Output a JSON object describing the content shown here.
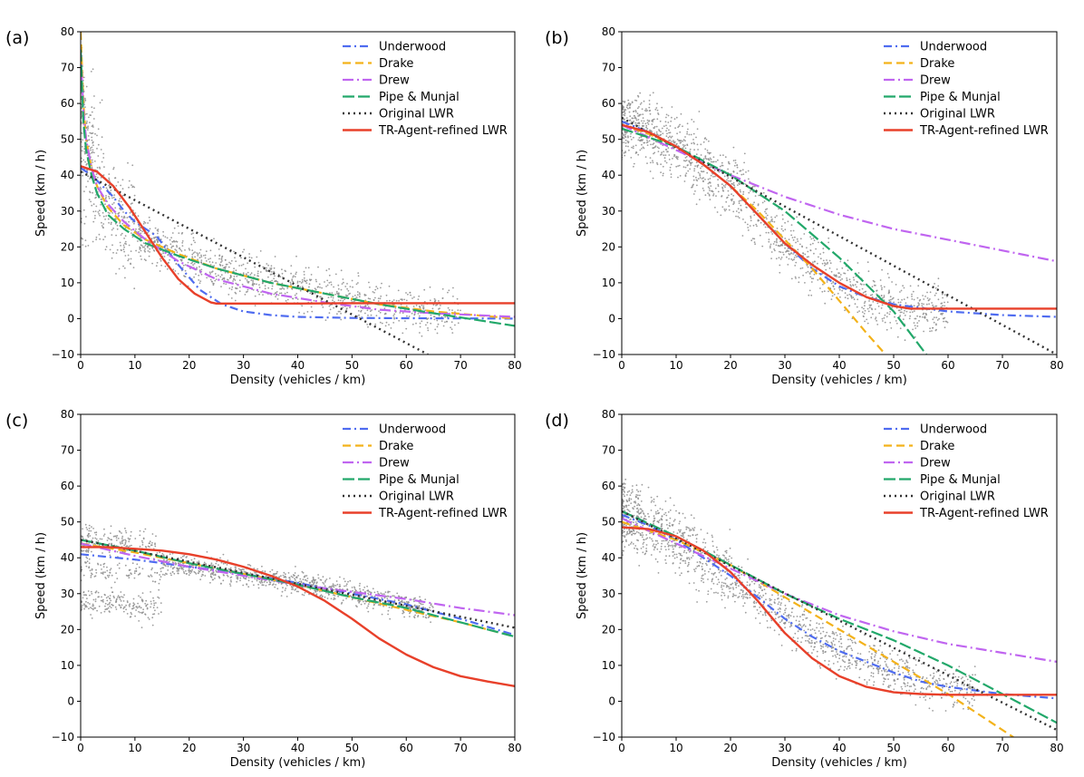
{
  "legend_labels": [
    "Underwood",
    "Drake",
    "Drew",
    "Pipe & Munjal",
    "Original LWR",
    "TR-Agent-refined LWR"
  ],
  "colors": {
    "underwood": "#4f6cf0",
    "drake": "#f3b21a",
    "drew": "#c065f0",
    "pipe": "#22a86a",
    "original": "#333333",
    "refined": "#e8402a",
    "scatter": "#8c8c8c"
  },
  "chart_data": [
    {
      "type": "line",
      "panel_label": "(a)",
      "xlabel": "Density (vehicles / km)",
      "ylabel": "Speed (km / h)",
      "xlim": [
        0,
        80
      ],
      "ylim": [
        -10,
        80
      ],
      "xticks": [
        "0",
        "10",
        "20",
        "30",
        "40",
        "50",
        "60",
        "70",
        "80"
      ],
      "yticks": [
        "80",
        "70",
        "60",
        "50",
        "40",
        "30",
        "20",
        "10",
        "0",
        "−10"
      ],
      "legend_position": "top-right",
      "series": [
        {
          "name": "Underwood",
          "x": [
            0,
            2,
            4,
            6,
            8,
            10,
            14,
            18,
            22,
            26,
            30,
            35,
            40,
            50,
            60,
            80
          ],
          "values": [
            42,
            40,
            37,
            34,
            30,
            27,
            23,
            15,
            8,
            4,
            2,
            1,
            0.5,
            0.2,
            0.1,
            0
          ]
        },
        {
          "name": "Drake",
          "x": [
            0,
            0.5,
            1,
            2,
            3,
            5,
            8,
            12,
            18,
            25,
            35,
            45,
            55,
            65,
            80
          ],
          "values": [
            80,
            60,
            50,
            42,
            37,
            31,
            26,
            22,
            18,
            14,
            10,
            7,
            4,
            2,
            0
          ]
        },
        {
          "name": "Drew",
          "x": [
            0,
            0.5,
            1,
            2,
            3,
            5,
            8,
            12,
            18,
            25,
            35,
            45,
            55,
            65,
            80
          ],
          "values": [
            75,
            58,
            50,
            42,
            37,
            32,
            27,
            22,
            16,
            11,
            7,
            4.5,
            2.5,
            1.5,
            0.5
          ]
        },
        {
          "name": "Pipe & Munjal",
          "x": [
            0,
            0.5,
            1,
            2,
            3,
            5,
            8,
            12,
            18,
            25,
            35,
            45,
            55,
            65,
            80
          ],
          "values": [
            75,
            55,
            47,
            40,
            35,
            29,
            25,
            21,
            17.5,
            14,
            10,
            7,
            4,
            1.5,
            -2
          ]
        },
        {
          "name": "Original LWR",
          "x": [
            0,
            64
          ],
          "values": [
            41,
            -10
          ]
        },
        {
          "name": "TR-Agent-refined LWR",
          "x": [
            0,
            3,
            6,
            9,
            12,
            15,
            18,
            21,
            24,
            25,
            30,
            40,
            50,
            60,
            70,
            80
          ],
          "values": [
            42.5,
            41,
            37,
            31,
            24,
            17,
            11,
            7,
            4.5,
            4.2,
            4.2,
            4.2,
            4.3,
            4.3,
            4.3,
            4.3
          ]
        }
      ]
    },
    {
      "type": "line",
      "panel_label": "(b)",
      "xlabel": "Density (vehicles / km)",
      "ylabel": "Speed (km / h)",
      "xlim": [
        0,
        80
      ],
      "ylim": [
        -10,
        80
      ],
      "xticks": [
        "0",
        "10",
        "20",
        "30",
        "40",
        "50",
        "60",
        "70",
        "80"
      ],
      "yticks": [
        "80",
        "70",
        "60",
        "50",
        "40",
        "30",
        "20",
        "10",
        "0",
        "−10"
      ],
      "legend_position": "top-right",
      "series": [
        {
          "name": "Underwood",
          "x": [
            0,
            5,
            10,
            15,
            20,
            25,
            30,
            35,
            40,
            45,
            50,
            55,
            60,
            70,
            80
          ],
          "values": [
            55,
            52,
            48,
            43,
            37,
            29,
            21,
            14,
            9,
            6,
            4,
            3,
            2,
            1,
            0.5
          ]
        },
        {
          "name": "Drake",
          "x": [
            0,
            5,
            10,
            15,
            20,
            25,
            30,
            35,
            40,
            45,
            48.5
          ],
          "values": [
            54,
            51.5,
            48,
            43,
            37,
            30,
            22,
            14,
            5,
            -4,
            -10
          ]
        },
        {
          "name": "Drew",
          "x": [
            0,
            10,
            20,
            30,
            40,
            50,
            60,
            70,
            80
          ],
          "values": [
            54,
            47,
            40,
            34,
            29,
            25,
            22,
            19,
            16
          ]
        },
        {
          "name": "Pipe & Munjal",
          "x": [
            0,
            10,
            20,
            30,
            40,
            50,
            56
          ],
          "values": [
            53,
            48,
            40,
            30,
            17,
            2,
            -10
          ]
        },
        {
          "name": "Original LWR",
          "x": [
            0,
            80
          ],
          "values": [
            56,
            -10
          ]
        },
        {
          "name": "TR-Agent-refined LWR",
          "x": [
            0,
            5,
            10,
            15,
            20,
            25,
            30,
            35,
            40,
            45,
            50,
            53,
            60,
            70,
            80
          ],
          "values": [
            54,
            52,
            48,
            43,
            37,
            29,
            21,
            15,
            10,
            6,
            3.5,
            2.8,
            2.8,
            2.8,
            2.8
          ]
        }
      ]
    },
    {
      "type": "line",
      "panel_label": "(c)",
      "xlabel": "Density (vehicles / km)",
      "ylabel": "Speed (km / h)",
      "xlim": [
        0,
        80
      ],
      "ylim": [
        -10,
        80
      ],
      "xticks": [
        "0",
        "10",
        "20",
        "30",
        "40",
        "50",
        "60",
        "70",
        "80"
      ],
      "yticks": [
        "80",
        "70",
        "60",
        "50",
        "40",
        "30",
        "20",
        "10",
        "0",
        "−10"
      ],
      "legend_position": "top-right",
      "series": [
        {
          "name": "Underwood",
          "x": [
            0,
            10,
            20,
            30,
            40,
            50,
            60,
            70,
            80
          ],
          "values": [
            41,
            39.5,
            37.5,
            35.5,
            33,
            30,
            27,
            23,
            18.5
          ]
        },
        {
          "name": "Drake",
          "x": [
            0,
            10,
            20,
            30,
            40,
            50,
            60,
            70,
            80
          ],
          "values": [
            44,
            41.5,
            38.5,
            35.5,
            32.5,
            29,
            25.5,
            22,
            18
          ]
        },
        {
          "name": "Drew",
          "x": [
            0,
            10,
            20,
            30,
            40,
            50,
            60,
            70,
            80
          ],
          "values": [
            44,
            40.5,
            37.5,
            35,
            32.5,
            30.5,
            28.5,
            26,
            24
          ]
        },
        {
          "name": "Pipe & Munjal",
          "x": [
            0,
            10,
            20,
            30,
            40,
            50,
            60,
            70,
            80
          ],
          "values": [
            45,
            42,
            38.5,
            35.5,
            32.5,
            29,
            26,
            22,
            18
          ]
        },
        {
          "name": "Original LWR",
          "x": [
            0,
            80
          ],
          "values": [
            45,
            20.5
          ]
        },
        {
          "name": "TR-Agent-refined LWR",
          "x": [
            0,
            5,
            10,
            15,
            20,
            25,
            30,
            35,
            40,
            45,
            50,
            55,
            60,
            65,
            70,
            75,
            80
          ],
          "values": [
            43,
            43,
            42.5,
            42,
            41,
            39.5,
            37.5,
            35,
            32,
            28,
            23,
            17.5,
            13,
            9.5,
            7,
            5.5,
            4.2
          ]
        }
      ]
    },
    {
      "type": "line",
      "panel_label": "(d)",
      "xlabel": "Density (vehicles / km)",
      "ylabel": "Speed (km / h)",
      "xlim": [
        0,
        80
      ],
      "ylim": [
        -10,
        80
      ],
      "xticks": [
        "0",
        "10",
        "20",
        "30",
        "40",
        "50",
        "60",
        "70",
        "80"
      ],
      "yticks": [
        "80",
        "70",
        "60",
        "50",
        "40",
        "30",
        "20",
        "10",
        "0",
        "−10"
      ],
      "legend_position": "top-right",
      "series": [
        {
          "name": "Underwood",
          "x": [
            0,
            5,
            10,
            15,
            20,
            25,
            30,
            35,
            40,
            45,
            50,
            55,
            60,
            70,
            80
          ],
          "values": [
            52,
            49,
            45,
            40,
            35,
            29,
            23,
            18,
            14,
            11,
            8,
            5.5,
            4,
            2,
            0.8
          ]
        },
        {
          "name": "Drake",
          "x": [
            0,
            10,
            20,
            30,
            40,
            50,
            60,
            72
          ],
          "values": [
            50,
            45,
            38,
            29,
            20,
            11,
            2,
            -10
          ]
        },
        {
          "name": "Drew",
          "x": [
            0,
            10,
            20,
            30,
            40,
            50,
            60,
            70,
            80
          ],
          "values": [
            51,
            44,
            37,
            30,
            24,
            19.5,
            16,
            13.5,
            11
          ]
        },
        {
          "name": "Pipe & Munjal",
          "x": [
            0,
            10,
            20,
            30,
            40,
            50,
            60,
            70,
            80
          ],
          "values": [
            53,
            46,
            38,
            30,
            23,
            17,
            10,
            2,
            -6
          ]
        },
        {
          "name": "Original LWR",
          "x": [
            0,
            80
          ],
          "values": [
            53,
            -8
          ]
        },
        {
          "name": "TR-Agent-refined LWR",
          "x": [
            0,
            5,
            10,
            15,
            20,
            25,
            30,
            35,
            40,
            45,
            50,
            55,
            60,
            65,
            70,
            80
          ],
          "values": [
            48.5,
            48,
            46,
            42,
            36,
            28,
            19,
            12,
            7,
            4,
            2.5,
            2,
            1.8,
            1.8,
            1.8,
            1.8
          ]
        }
      ]
    }
  ]
}
